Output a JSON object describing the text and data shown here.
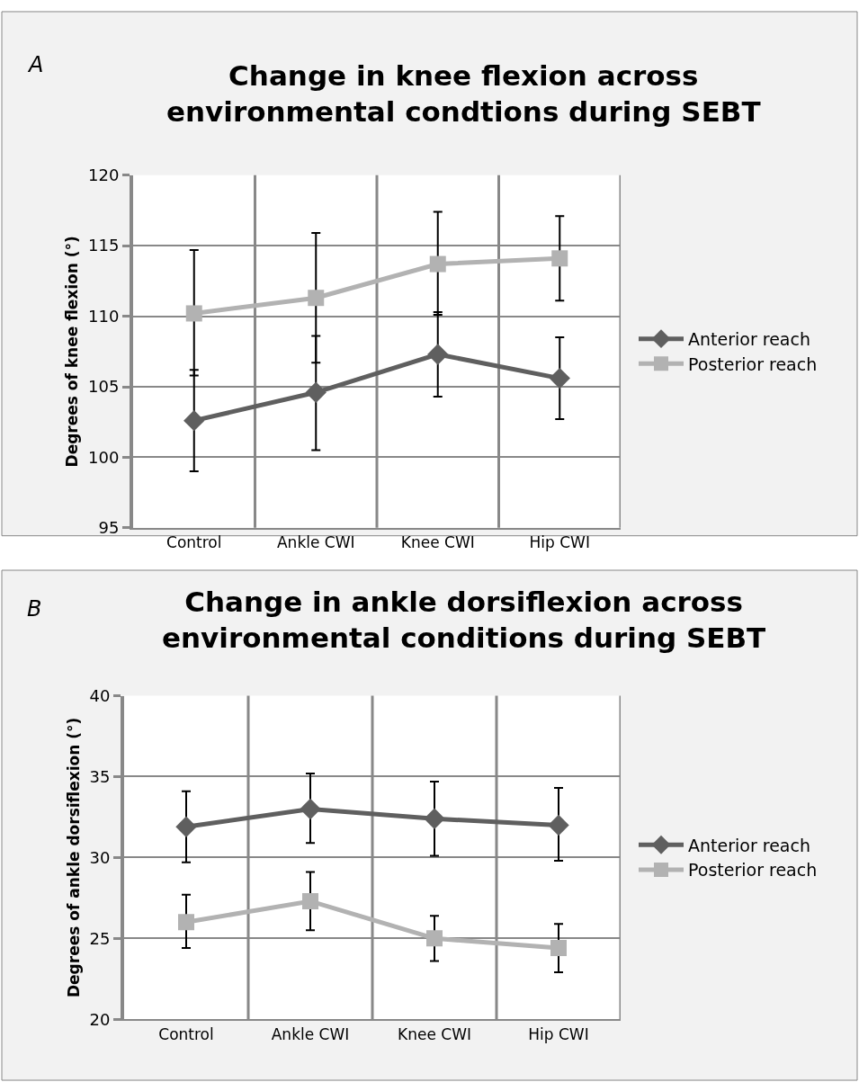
{
  "chart_data": [
    {
      "type": "line",
      "title": "Change in knee flexion across environmental condtions during SEBT",
      "ylabel": "Degrees of knee flexion (°)",
      "annotations": [
        "A"
      ],
      "categories": [
        "Control",
        "Ankle CWI",
        "Knee CWI",
        "Hip CWI"
      ],
      "ylim": [
        95,
        120
      ],
      "yticks": [
        95,
        100,
        105,
        110,
        115,
        120
      ],
      "grid": true,
      "legend": "right",
      "line_style": "solid",
      "series": [
        {
          "name": "Anterior reach",
          "color": "#5f5f5f",
          "marker": "diamond",
          "values": [
            102.6,
            104.6,
            107.3,
            105.6
          ],
          "errors": [
            [
              99.0,
              106.2
            ],
            [
              100.5,
              108.6
            ],
            [
              104.3,
              110.3
            ],
            [
              102.7,
              108.5
            ]
          ]
        },
        {
          "name": "Posterior reach",
          "color": "#b2b2b2",
          "marker": "square",
          "values": [
            110.2,
            111.3,
            113.7,
            114.1
          ],
          "errors": [
            [
              105.8,
              114.7
            ],
            [
              106.7,
              115.9
            ],
            [
              110.1,
              117.4
            ],
            [
              111.1,
              117.1
            ]
          ]
        }
      ]
    },
    {
      "type": "line",
      "title": "Change in ankle dorsiflexion across environmental conditions during SEBT",
      "ylabel": "Degrees of ankle dorsiflexion (°)",
      "annotations": [
        "B"
      ],
      "categories": [
        "Control",
        "Ankle CWI",
        "Knee CWI",
        "Hip CWI"
      ],
      "ylim": [
        20,
        40
      ],
      "yticks": [
        20,
        25,
        30,
        35,
        40
      ],
      "grid": true,
      "legend": "right",
      "line_style": "solid",
      "series": [
        {
          "name": "Anterior reach",
          "color": "#5f5f5f",
          "marker": "diamond",
          "values": [
            31.9,
            33.0,
            32.4,
            32.0
          ],
          "errors": [
            [
              29.7,
              34.1
            ],
            [
              30.9,
              35.2
            ],
            [
              30.1,
              34.7
            ],
            [
              29.8,
              34.3
            ]
          ]
        },
        {
          "name": "Posterior reach",
          "color": "#b2b2b2",
          "marker": "square",
          "values": [
            26.0,
            27.3,
            25.0,
            24.4
          ],
          "errors": [
            [
              24.4,
              27.7
            ],
            [
              25.5,
              29.1
            ],
            [
              23.6,
              26.4
            ],
            [
              22.9,
              25.9
            ]
          ]
        }
      ]
    }
  ]
}
